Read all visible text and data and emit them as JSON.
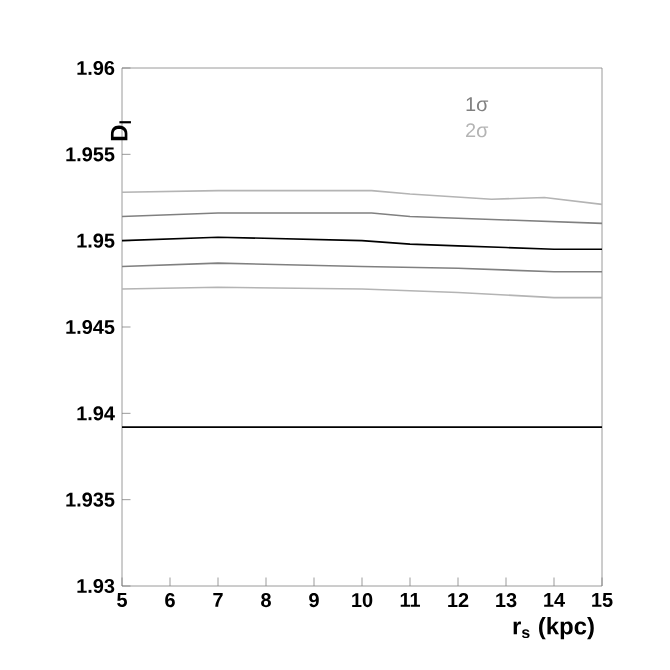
{
  "chart_data": {
    "type": "line",
    "xlabel": "r$_{s}$ (kpc)",
    "ylabel": "D$_{l}$",
    "xlim": [
      5,
      15
    ],
    "xticks": [
      5,
      6,
      7,
      8,
      9,
      10,
      11,
      12,
      13,
      14,
      15
    ],
    "ylim": [
      1.93,
      1.96
    ],
    "yticks": [
      1.93,
      1.935,
      1.94,
      1.945,
      1.95,
      1.955,
      1.96
    ],
    "grid": false,
    "legend": "top right",
    "marker": "none",
    "line_style": "solid",
    "series": [
      {
        "color": "#000000",
        "x": [
          5,
          7,
          10,
          11,
          12,
          13,
          14,
          15
        ],
        "values": [
          1.95,
          1.9502,
          1.95,
          1.9498,
          1.9497,
          1.9496,
          1.9495,
          1.9495
        ]
      },
      {
        "name": "1σ",
        "color": "#808080",
        "x": [
          5,
          7,
          10.2,
          11,
          13,
          15
        ],
        "values": [
          1.9514,
          1.9516,
          1.9516,
          1.9514,
          1.9512,
          1.951
        ]
      },
      {
        "color": "#808080",
        "x": [
          5,
          7,
          10,
          12,
          14,
          15
        ],
        "values": [
          1.9485,
          1.9487,
          1.9485,
          1.9484,
          1.9482,
          1.9482
        ]
      },
      {
        "name": "2σ",
        "color": "#b4b4b4",
        "x": [
          5,
          7,
          10.2,
          11,
          12.7,
          13.8,
          15
        ],
        "values": [
          1.9528,
          1.9529,
          1.9529,
          1.9527,
          1.9524,
          1.9525,
          1.9521
        ]
      },
      {
        "color": "#b4b4b4",
        "x": [
          5,
          7,
          10,
          12,
          14,
          15
        ],
        "values": [
          1.9472,
          1.9473,
          1.9472,
          1.947,
          1.9467,
          1.9467
        ]
      }
    ],
    "ref_lines": [
      {
        "axis": "y",
        "value": 1.9392,
        "color": "#000000"
      }
    ]
  }
}
